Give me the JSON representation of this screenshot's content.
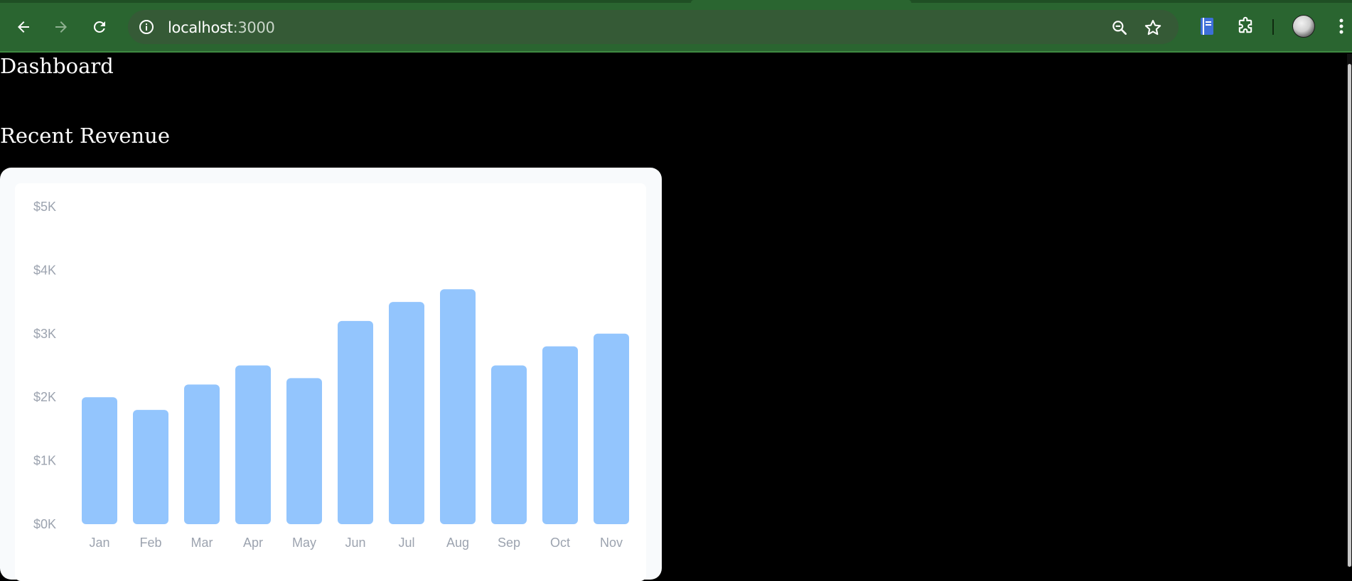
{
  "browser": {
    "url_host": "localhost",
    "url_port": ":3000"
  },
  "page": {
    "heading": "Dashboard",
    "section_title": "Recent Revenue"
  },
  "colors": {
    "bar": "#93c5fd",
    "axis_text": "#9ca3af"
  },
  "chart_data": {
    "type": "bar",
    "categories": [
      "Jan",
      "Feb",
      "Mar",
      "Apr",
      "May",
      "Jun",
      "Jul",
      "Aug",
      "Sep",
      "Oct",
      "Nov"
    ],
    "values": [
      2000,
      1800,
      2200,
      2500,
      2300,
      3200,
      3500,
      3700,
      2500,
      2800,
      3000
    ],
    "y_ticks": [
      "$0K",
      "$1K",
      "$2K",
      "$3K",
      "$4K",
      "$5K"
    ],
    "ylim": [
      0,
      5000
    ],
    "title": "",
    "xlabel": "",
    "ylabel": "",
    "grid": false,
    "legend": "none"
  }
}
